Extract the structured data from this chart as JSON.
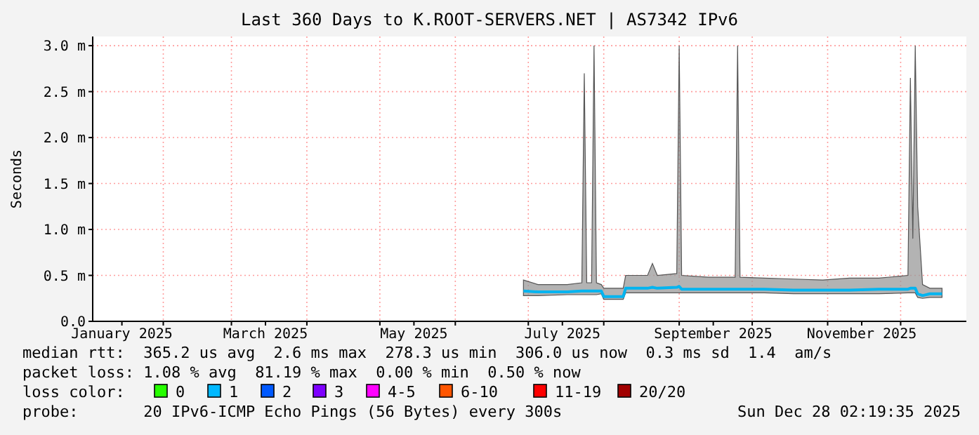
{
  "chart_data": {
    "type": "line",
    "title": "Last 360 Days to K.ROOT-SERVERS.NET | AS7342 IPv6",
    "ylabel": "Seconds",
    "xlim": [
      "2025-01-03",
      "2025-12-28"
    ],
    "xticks": [
      {
        "value": "2025-01-15",
        "label": "January 2025"
      },
      {
        "value": "2025-03-15",
        "label": "March 2025"
      },
      {
        "value": "2025-05-15",
        "label": "May 2025"
      },
      {
        "value": "2025-07-15",
        "label": "July 2025"
      },
      {
        "value": "2025-09-15",
        "label": "September 2025"
      },
      {
        "value": "2025-11-15",
        "label": "November 2025"
      },
      {
        "value": "2025-02-01",
        "label": null
      },
      {
        "value": "2025-03-01",
        "label": null
      },
      {
        "value": "2025-04-01",
        "label": null
      },
      {
        "value": "2025-05-01",
        "label": null
      },
      {
        "value": "2025-06-01",
        "label": null
      },
      {
        "value": "2025-07-01",
        "label": null
      },
      {
        "value": "2025-08-01",
        "label": null
      },
      {
        "value": "2025-09-01",
        "label": null
      },
      {
        "value": "2025-10-01",
        "label": null
      },
      {
        "value": "2025-11-01",
        "label": null
      },
      {
        "value": "2025-12-01",
        "label": null
      }
    ],
    "ylim": [
      0,
      3.1
    ],
    "yticks": [
      {
        "value": 0,
        "label": "0.0"
      },
      {
        "value": 0.5,
        "label": "0.5 m"
      },
      {
        "value": 1.0,
        "label": "1.0 m"
      },
      {
        "value": 1.5,
        "label": "1.5 m"
      },
      {
        "value": 2.0,
        "label": "2.0 m"
      },
      {
        "value": 2.5,
        "label": "2.5 m"
      },
      {
        "value": 3.0,
        "label": "3.0 m"
      }
    ],
    "grid": true,
    "marker": "none",
    "line_style": "solid",
    "series": [
      {
        "color": "#00b4f0",
        "x": [
          "2025-06-29",
          "2025-07-05",
          "2025-07-17",
          "2025-07-23",
          "2025-07-24",
          "2025-07-25",
          "2025-07-27",
          "2025-07-28",
          "2025-07-29",
          "2025-07-31",
          "2025-08-01",
          "2025-08-09",
          "2025-08-10",
          "2025-08-19",
          "2025-08-21",
          "2025-08-23",
          "2025-08-31",
          "2025-09-01",
          "2025-09-02",
          "2025-09-13",
          "2025-09-24",
          "2025-09-25",
          "2025-09-26",
          "2025-10-06",
          "2025-10-18",
          "2025-10-30",
          "2025-11-10",
          "2025-11-22",
          "2025-12-04",
          "2025-12-05",
          "2025-12-06",
          "2025-12-07",
          "2025-12-08",
          "2025-12-10",
          "2025-12-13",
          "2025-12-18"
        ],
        "values": [
          0.33,
          0.32,
          0.32,
          0.33,
          0.33,
          0.33,
          0.33,
          0.33,
          0.33,
          0.33,
          0.27,
          0.27,
          0.36,
          0.36,
          0.37,
          0.36,
          0.37,
          0.38,
          0.35,
          0.35,
          0.35,
          0.35,
          0.35,
          0.35,
          0.34,
          0.34,
          0.34,
          0.35,
          0.35,
          0.36,
          0.36,
          0.36,
          0.3,
          0.28,
          0.3,
          0.3
        ],
        "lower": [
          0.28,
          0.28,
          0.29,
          0.29,
          0.29,
          0.29,
          0.29,
          0.29,
          0.29,
          0.3,
          0.24,
          0.24,
          0.31,
          0.31,
          0.31,
          0.31,
          0.31,
          0.31,
          0.31,
          0.31,
          0.31,
          0.31,
          0.31,
          0.31,
          0.3,
          0.3,
          0.3,
          0.3,
          0.31,
          0.31,
          0.31,
          0.31,
          0.26,
          0.25,
          0.26,
          0.26
        ],
        "upper": [
          0.45,
          0.4,
          0.4,
          0.42,
          2.7,
          0.42,
          0.42,
          3.0,
          0.42,
          0.4,
          0.36,
          0.36,
          0.5,
          0.5,
          0.63,
          0.5,
          0.52,
          3.0,
          0.5,
          0.48,
          0.48,
          3.0,
          0.48,
          0.47,
          0.46,
          0.45,
          0.47,
          0.47,
          0.5,
          2.65,
          0.9,
          3.0,
          1.25,
          0.4,
          0.36,
          0.36
        ]
      }
    ],
    "annotations": [
      "median rtt:  365.2 us avg  2.6 ms max  278.3 us min  306.0 us now  0.3 ms sd  1.4  am/s",
      "packet loss: 1.08 % avg  81.19 % max  0.00 % min  0.50 % now",
      "loss color:",
      "0",
      "1",
      "2",
      "3",
      "4-5",
      "6-10",
      "11-19",
      "20/20",
      "probe:       20 IPv6-ICMP Echo Pings (56 Bytes) every 300s",
      "Sun Dec 28 02:19:35 2025"
    ]
  }
}
